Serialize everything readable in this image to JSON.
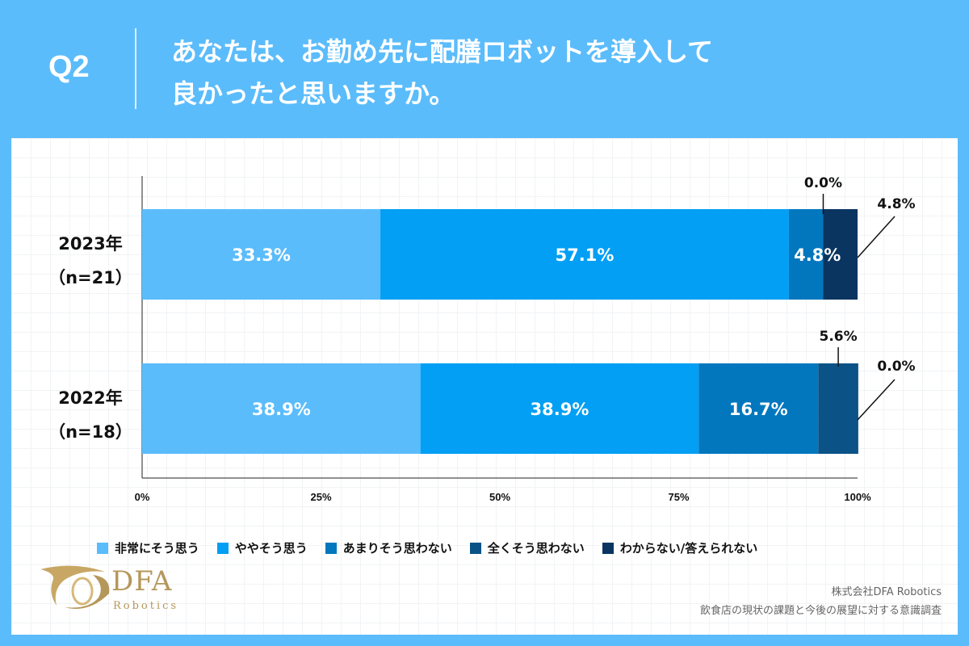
{
  "header": {
    "question_number": "Q2",
    "title_line1": "あなたは、お勤め先に配膳ロボットを導入して",
    "title_line2": "良かったと思いますか。"
  },
  "chart_data": {
    "type": "bar",
    "orientation": "horizontal",
    "stacked": true,
    "categories": [
      "2023年（n=21）",
      "2022年（n=18）"
    ],
    "category_lines": [
      [
        "2023年",
        "（n=21）"
      ],
      [
        "2022年",
        "（n=18）"
      ]
    ],
    "series": [
      {
        "name": "非常にそう思う",
        "values": [
          33.3,
          38.9
        ],
        "labels": [
          "33.3%",
          "38.9%"
        ],
        "color": "#5bbcfb"
      },
      {
        "name": "ややそう思う",
        "values": [
          57.1,
          38.9
        ],
        "labels": [
          "57.1%",
          "38.9%"
        ],
        "color": "#029ff4"
      },
      {
        "name": "あまりそう思わない",
        "values": [
          4.8,
          16.7
        ],
        "labels": [
          "4.8%",
          "16.7%"
        ],
        "color": "#0277be"
      },
      {
        "name": "全くそう思わない",
        "values": [
          0.0,
          5.6
        ],
        "labels": [
          "0.0%",
          "5.6%"
        ],
        "color": "#0b5387"
      },
      {
        "name": "わからない/答えられない",
        "values": [
          4.8,
          0.0
        ],
        "labels": [
          "4.8%",
          "0.0%"
        ],
        "color": "#0a3561"
      }
    ],
    "xlim": [
      0,
      100
    ],
    "x_ticks": [
      "0%",
      "25%",
      "50%",
      "75%",
      "100%"
    ],
    "legend_position": "bottom"
  },
  "logo": {
    "name": "DFA",
    "sub": "Robotics"
  },
  "source": {
    "line1": "株式会社DFA Robotics",
    "line2": "飲食店の現状の課題と今後の展望に対する意識調査"
  }
}
